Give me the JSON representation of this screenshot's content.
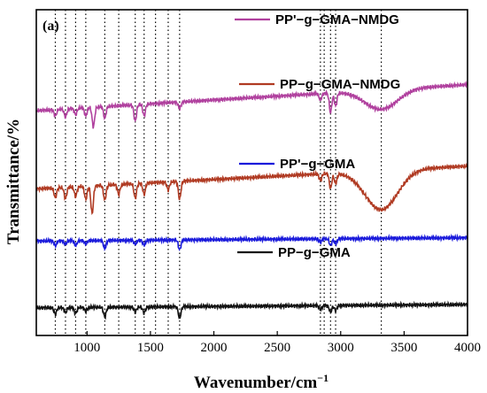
{
  "chart_data": {
    "type": "line",
    "panel_label": "(a)",
    "xlabel": "Wavenumber/cm",
    "xlabel_superscript": "−1",
    "ylabel": "Transmittance/%",
    "xlim": [
      600,
      4000
    ],
    "x_ticks": [
      1000,
      1500,
      2000,
      2500,
      3000,
      3500,
      4000
    ],
    "y_ticks_shown": false,
    "reference_lines_x": [
      750,
      830,
      910,
      990,
      1140,
      1250,
      1380,
      1450,
      1540,
      1640,
      1730,
      2840,
      2870,
      2920,
      2960,
      3320
    ],
    "series": [
      {
        "name": "PP'−g−GMA−NMDG",
        "color": "#b0409e",
        "baseline": 0.69,
        "end_value": 0.77,
        "broad_band": {
          "center": 3320,
          "depth": 0.06
        },
        "peaks": [
          [
            750,
            0.02
          ],
          [
            830,
            0.025
          ],
          [
            910,
            0.02
          ],
          [
            990,
            0.025
          ],
          [
            1050,
            0.06
          ],
          [
            1140,
            0.035
          ],
          [
            1380,
            0.05
          ],
          [
            1450,
            0.035
          ],
          [
            1730,
            0.02
          ],
          [
            2840,
            0.02
          ],
          [
            2920,
            0.06
          ],
          [
            2960,
            0.04
          ]
        ]
      },
      {
        "name": "PP−g−GMA−NMDG",
        "color": "#b03a22",
        "baseline": 0.45,
        "end_value": 0.52,
        "broad_band": {
          "center": 3320,
          "depth": 0.12
        },
        "peaks": [
          [
            750,
            0.03
          ],
          [
            830,
            0.035
          ],
          [
            910,
            0.03
          ],
          [
            990,
            0.04
          ],
          [
            1040,
            0.085
          ],
          [
            1140,
            0.045
          ],
          [
            1250,
            0.03
          ],
          [
            1380,
            0.045
          ],
          [
            1450,
            0.035
          ],
          [
            1640,
            0.025
          ],
          [
            1730,
            0.055
          ],
          [
            2840,
            0.02
          ],
          [
            2920,
            0.045
          ],
          [
            2960,
            0.03
          ]
        ]
      },
      {
        "name": "PP'−g−GMA",
        "color": "#1a1adb",
        "baseline": 0.29,
        "end_value": 0.3,
        "broad_band": null,
        "peaks": [
          [
            750,
            0.015
          ],
          [
            830,
            0.01
          ],
          [
            910,
            0.015
          ],
          [
            990,
            0.01
          ],
          [
            1140,
            0.025
          ],
          [
            1380,
            0.012
          ],
          [
            1450,
            0.015
          ],
          [
            1730,
            0.03
          ],
          [
            2840,
            0.01
          ],
          [
            2920,
            0.02
          ],
          [
            2960,
            0.015
          ]
        ]
      },
      {
        "name": "PP−g−GMA",
        "color": "#111111",
        "baseline": 0.085,
        "end_value": 0.095,
        "broad_band": null,
        "peaks": [
          [
            750,
            0.02
          ],
          [
            830,
            0.015
          ],
          [
            910,
            0.018
          ],
          [
            990,
            0.012
          ],
          [
            1140,
            0.03
          ],
          [
            1380,
            0.015
          ],
          [
            1450,
            0.018
          ],
          [
            1730,
            0.035
          ],
          [
            2840,
            0.012
          ],
          [
            2920,
            0.02
          ],
          [
            2960,
            0.015
          ]
        ]
      }
    ]
  }
}
